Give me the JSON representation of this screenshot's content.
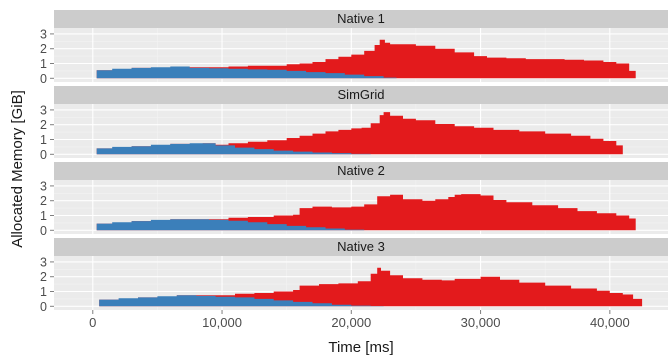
{
  "chart_data": {
    "type": "area",
    "xlabel": "Time [ms]",
    "ylabel": "Allocated Memory [GiB]",
    "xlim": [
      -3000,
      44500
    ],
    "ylim": [
      -0.25,
      3.4
    ],
    "x_ticks": [
      0,
      10000,
      20000,
      30000,
      40000
    ],
    "x_tick_labels": [
      "0",
      "10,000",
      "20,000",
      "30,000",
      "40,000"
    ],
    "y_ticks": [
      0,
      1,
      2,
      3
    ],
    "y_tick_labels": [
      "0",
      "1",
      "2",
      "3"
    ],
    "grid": true,
    "legend": "none",
    "colors": {
      "blue": "#3b7fba",
      "red": "#e31a1c",
      "strip_bg": "#cccccc",
      "panel_bg": "#ebebeb",
      "grid_major": "#ffffff",
      "grid_minor": "#f3f3f3"
    },
    "panels": [
      {
        "strip": "Native 1",
        "blue": {
          "x": [
            0,
            300,
            1500,
            3000,
            4500,
            5500,
            6000,
            7500,
            9000,
            10500,
            12000,
            13500,
            15000,
            16500,
            18000,
            19500,
            21000,
            22500,
            23500
          ],
          "y": [
            0,
            0.55,
            0.65,
            0.7,
            0.75,
            0.75,
            0.8,
            0.7,
            0.68,
            0.65,
            0.6,
            0.58,
            0.5,
            0.42,
            0.35,
            0.25,
            0.15,
            0.05,
            0
          ]
        },
        "red": {
          "x": [
            0,
            300,
            3000,
            6000,
            9000,
            10500,
            12000,
            13500,
            15000,
            16000,
            17000,
            18000,
            19000,
            20000,
            21000,
            21800,
            22200,
            22600,
            23000,
            25000,
            26500,
            28000,
            29500,
            30500,
            32000,
            33500,
            35000,
            36500,
            38000,
            39500,
            40500,
            41500,
            42000
          ],
          "y": [
            0,
            0.55,
            0.7,
            0.75,
            0.75,
            0.8,
            0.85,
            0.85,
            0.95,
            1.0,
            1.1,
            1.3,
            1.45,
            1.6,
            1.85,
            2.25,
            2.6,
            2.4,
            2.3,
            2.2,
            2.0,
            1.75,
            1.5,
            1.4,
            1.35,
            1.3,
            1.3,
            1.25,
            1.2,
            1.1,
            1.0,
            0.5,
            0
          ]
        }
      },
      {
        "strip": "SimGrid",
        "blue": {
          "x": [
            0,
            300,
            1500,
            3000,
            4500,
            6000,
            7500,
            8500,
            9500,
            11000,
            12500,
            14000,
            15500,
            17000,
            18500,
            20000,
            21500
          ],
          "y": [
            0,
            0.4,
            0.5,
            0.55,
            0.65,
            0.7,
            0.75,
            0.75,
            0.6,
            0.45,
            0.35,
            0.25,
            0.18,
            0.12,
            0.08,
            0.03,
            0
          ]
        },
        "red": {
          "x": [
            0,
            300,
            3000,
            6000,
            8500,
            9500,
            10500,
            12000,
            13500,
            15000,
            16000,
            17000,
            18000,
            19000,
            20000,
            20800,
            21500,
            22200,
            22500,
            23000,
            24000,
            25000,
            26500,
            28000,
            29500,
            31000,
            33000,
            35000,
            37000,
            38500,
            39500,
            40500,
            41000
          ],
          "y": [
            0,
            0.4,
            0.55,
            0.7,
            0.75,
            0.65,
            0.75,
            0.85,
            0.95,
            1.1,
            1.25,
            1.4,
            1.55,
            1.65,
            1.75,
            1.8,
            2.1,
            2.65,
            2.85,
            2.6,
            2.4,
            2.3,
            2.05,
            1.9,
            1.8,
            1.65,
            1.55,
            1.4,
            1.25,
            1.05,
            0.9,
            0.6,
            0
          ]
        }
      },
      {
        "strip": "Native 2",
        "blue": {
          "x": [
            0,
            300,
            1500,
            3000,
            4500,
            6000,
            7500,
            9000,
            10500,
            12000,
            13500,
            15000,
            16500,
            18000,
            19500,
            21000
          ],
          "y": [
            0,
            0.45,
            0.55,
            0.62,
            0.7,
            0.75,
            0.75,
            0.7,
            0.65,
            0.55,
            0.42,
            0.3,
            0.2,
            0.12,
            0.05,
            0
          ]
        },
        "red": {
          "x": [
            0,
            300,
            3000,
            6000,
            9000,
            10500,
            12000,
            14000,
            15500,
            16000,
            17000,
            18500,
            20000,
            21000,
            22000,
            23000,
            24000,
            25500,
            26500,
            27500,
            28000,
            28500,
            30000,
            31000,
            32000,
            34000,
            36000,
            37500,
            39000,
            40500,
            41500,
            42000
          ],
          "y": [
            0,
            0.45,
            0.62,
            0.75,
            0.75,
            0.85,
            0.9,
            1.0,
            1.05,
            1.5,
            1.6,
            1.55,
            1.6,
            1.75,
            2.3,
            2.4,
            2.1,
            2.0,
            2.1,
            2.25,
            2.4,
            2.45,
            2.35,
            2.05,
            1.9,
            1.7,
            1.5,
            1.3,
            1.15,
            1.0,
            0.8,
            0
          ]
        }
      },
      {
        "strip": "Native 3",
        "blue": {
          "x": [
            0,
            300,
            500,
            2000,
            3500,
            5000,
            6500,
            8000,
            9500,
            11000,
            12500,
            14000,
            15500,
            17000,
            18500,
            20000,
            21500,
            22500
          ],
          "y": [
            0,
            0,
            0.45,
            0.55,
            0.6,
            0.68,
            0.75,
            0.7,
            0.65,
            0.6,
            0.5,
            0.4,
            0.3,
            0.2,
            0.1,
            0.05,
            0.02,
            0
          ]
        },
        "red": {
          "x": [
            0,
            300,
            500,
            3500,
            6500,
            9500,
            11000,
            12500,
            14000,
            15500,
            16000,
            17500,
            19000,
            20500,
            21500,
            22000,
            22300,
            23000,
            24000,
            25500,
            27000,
            28000,
            30000,
            31500,
            33000,
            35000,
            37000,
            39000,
            40000,
            41000,
            41800,
            42500
          ],
          "y": [
            0,
            0,
            0.45,
            0.6,
            0.75,
            0.75,
            0.85,
            0.9,
            1.0,
            1.1,
            1.4,
            1.5,
            1.55,
            1.7,
            2.2,
            2.6,
            2.4,
            2.1,
            1.9,
            1.8,
            1.75,
            1.85,
            2.0,
            1.8,
            1.6,
            1.4,
            1.2,
            1.05,
            0.9,
            0.8,
            0.5,
            0
          ]
        }
      }
    ]
  }
}
